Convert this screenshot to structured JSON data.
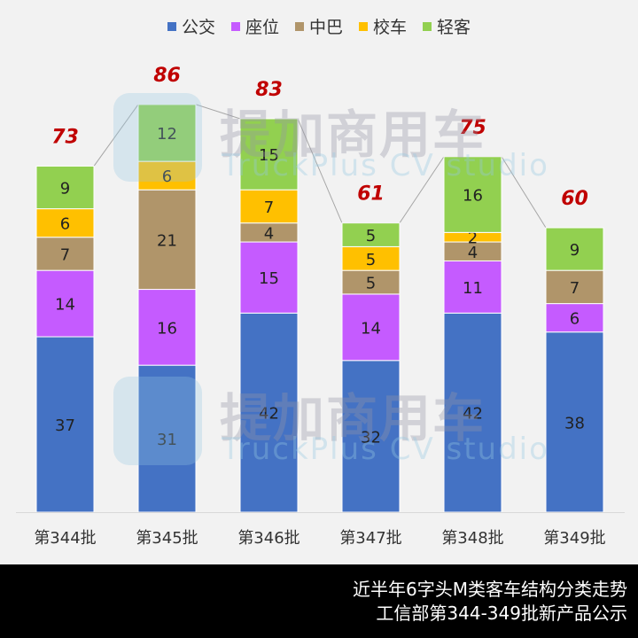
{
  "chart_data": {
    "type": "bar",
    "stacked": true,
    "categories": [
      "第344批",
      "第345批",
      "第346批",
      "第347批",
      "第348批",
      "第349批"
    ],
    "series": [
      {
        "name": "公交",
        "color": "#4472C4",
        "values": [
          37,
          31,
          42,
          32,
          42,
          38
        ]
      },
      {
        "name": "座位",
        "color": "#C55BFF",
        "values": [
          14,
          16,
          15,
          14,
          11,
          6
        ]
      },
      {
        "name": "中巴",
        "color": "#B0956A",
        "values": [
          7,
          21,
          4,
          5,
          4,
          7
        ]
      },
      {
        "name": "校车",
        "color": "#FFC000",
        "values": [
          6,
          6,
          7,
          5,
          2,
          0
        ]
      },
      {
        "name": "轻客",
        "color": "#92D050",
        "values": [
          9,
          12,
          15,
          5,
          16,
          9
        ]
      }
    ],
    "totals": [
      73,
      86,
      83,
      61,
      75,
      60
    ],
    "totals_color": "#C00000",
    "legend_position": "top",
    "grid": false,
    "ylim": [
      0,
      100
    ]
  },
  "watermark": {
    "cn": "提加商用车",
    "en": "TruckPlus CV studio"
  },
  "footer": {
    "line1": "近半年6字头M类客车结构分类走势",
    "line2": "工信部第344-349批新产品公示"
  }
}
